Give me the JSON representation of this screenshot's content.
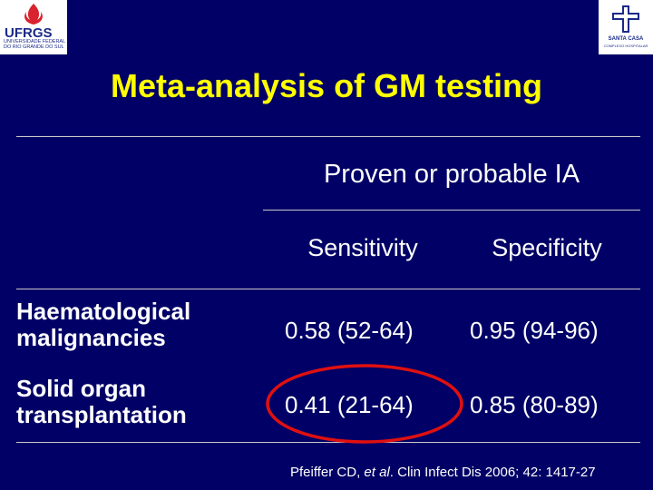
{
  "logos": {
    "left": {
      "name": "UFRGS",
      "subtitle": "UNIVERSIDADE FEDERAL DO RIO GRANDE DO SUL"
    },
    "right": {
      "name": "SANTA CASA",
      "subtitle": "COMPLEXO HOSPITALAR"
    }
  },
  "title": "Meta-analysis of GM testing",
  "table": {
    "group_header": "Proven or probable IA",
    "columns": [
      "Sensitivity",
      "Specificity"
    ],
    "rows": [
      {
        "label": "Haematological malignancies",
        "sensitivity": "0.58 (52-64)",
        "specificity": "0.95 (94-96)"
      },
      {
        "label": "Solid organ transplantation",
        "sensitivity": "0.41 (21-64)",
        "specificity": "0.85 (80-89)"
      }
    ]
  },
  "citation": {
    "authors": "Pfeiffer CD, ",
    "etal": "et al",
    "rest": ". Clin Infect Dis 2006; 42: 1417-27"
  },
  "colors": {
    "background": "#000066",
    "title": "#ffff00",
    "highlight": "#e01010"
  }
}
